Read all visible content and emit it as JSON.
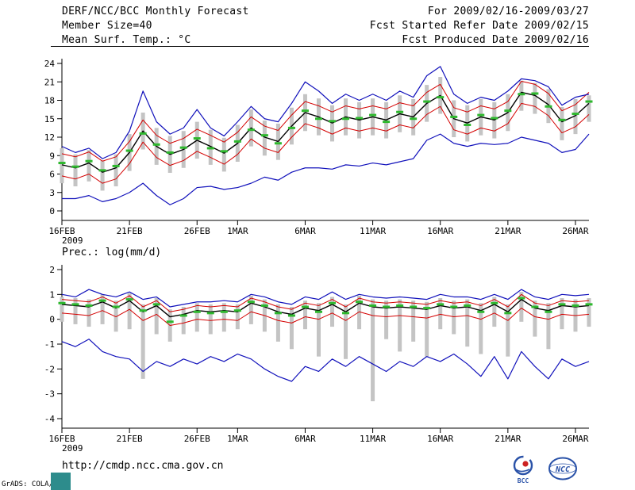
{
  "header": {
    "title": "DERF/NCC/BCC Monthly Forecast",
    "member_size": "Member Size=40",
    "var_label": "Mean Surf. Temp.: °C",
    "for_range": "For 2009/02/16-2009/03/27",
    "refer_date": "Fcst Started Refer Date 2009/02/15",
    "produced_date": "Fcst Produced Date 2009/02/16"
  },
  "footer": {
    "url": "http://cmdp.ncc.cma.gov.cn",
    "credit": "GrADS: COLA/IGES",
    "logos": [
      {
        "name": "BCC"
      },
      {
        "name": "NCC"
      }
    ]
  },
  "colors": {
    "background": "#ffffff",
    "text": "#000000",
    "ensemble_bar": "#c4c4c4",
    "median_green": "#2eb82e",
    "mean_black": "#000000",
    "bound_red": "#d40000",
    "extreme_blue": "#1111bb",
    "teal_box": "#2d8c8c",
    "logo_blue": "#2a52a8",
    "logo_red": "#cc2222"
  },
  "chart_data": [
    {
      "type": "line",
      "title": "Mean Surf. Temp.: °C",
      "xlabel": "",
      "ylabel": "",
      "grid": false,
      "legend": "none",
      "ylim": [
        0,
        24
      ],
      "yticks": [
        0,
        3,
        6,
        9,
        12,
        15,
        18,
        21,
        24
      ],
      "n_points": 40,
      "x_start_date": "2009/02/16",
      "x_end_date": "2009/03/27",
      "x_tick_labels": [
        "16FEB",
        "21FEB",
        "26FEB",
        "1MAR",
        "6MAR",
        "11MAR",
        "16MAR",
        "21MAR",
        "26MAR"
      ],
      "x_tick_positions": [
        0,
        5,
        10,
        13,
        18,
        23,
        28,
        33,
        38
      ],
      "x_year_label": "2009",
      "series": [
        {
          "name": "ensemble-spread",
          "type": "bar-range",
          "color": "#c4c4c4",
          "low": [
            4.5,
            4.0,
            4.8,
            3.3,
            4.0,
            6.5,
            10.0,
            7.5,
            6.2,
            7.0,
            8.5,
            7.5,
            6.4,
            8.0,
            10.5,
            9.0,
            8.3,
            10.8,
            13.0,
            12.3,
            11.3,
            12.3,
            11.8,
            12.3,
            11.8,
            12.8,
            12.3,
            14.5,
            15.8,
            12.0,
            11.3,
            12.3,
            11.8,
            13.0,
            16.3,
            15.8,
            14.3,
            11.5,
            12.5,
            14.5
          ],
          "high": [
            10.2,
            9.2,
            9.9,
            8.2,
            9.2,
            12.5,
            16.0,
            13.5,
            12.2,
            13.0,
            14.5,
            13.2,
            11.9,
            14.0,
            16.5,
            14.7,
            14.2,
            16.8,
            19.0,
            18.3,
            17.2,
            18.3,
            17.7,
            18.3,
            17.7,
            18.8,
            18.2,
            20.5,
            21.8,
            18.0,
            17.2,
            18.2,
            17.7,
            19.0,
            21.2,
            20.8,
            19.8,
            16.9,
            18.2,
            18.8
          ]
        },
        {
          "name": "upper-bound",
          "type": "line",
          "color": "#d40000",
          "width": 1,
          "values": [
            9.3,
            8.8,
            9.6,
            8.1,
            8.8,
            11.3,
            14.8,
            12.3,
            11.0,
            11.8,
            13.3,
            12.3,
            11.2,
            12.8,
            15.3,
            13.8,
            13.1,
            15.6,
            17.8,
            17.1,
            16.1,
            17.1,
            16.6,
            17.1,
            16.6,
            17.6,
            17.1,
            19.3,
            20.6,
            16.8,
            16.1,
            17.1,
            16.6,
            17.8,
            21.1,
            20.6,
            19.1,
            16.3,
            17.3,
            19.3
          ]
        },
        {
          "name": "lower-bound",
          "type": "line",
          "color": "#d40000",
          "width": 1,
          "values": [
            5.7,
            5.2,
            6.0,
            4.5,
            5.2,
            7.7,
            11.2,
            8.7,
            7.4,
            8.2,
            9.7,
            8.7,
            7.6,
            9.2,
            11.7,
            10.2,
            9.5,
            12.0,
            14.2,
            13.5,
            12.5,
            13.5,
            13.0,
            13.5,
            13.0,
            14.0,
            13.5,
            15.7,
            17.0,
            13.2,
            12.5,
            13.5,
            13.0,
            14.2,
            17.5,
            17.0,
            15.5,
            12.7,
            13.7,
            15.7
          ]
        },
        {
          "name": "ensemble-mean",
          "type": "line",
          "color": "#000000",
          "width": 1.4,
          "values": [
            7.5,
            7.0,
            7.8,
            6.3,
            7.0,
            9.5,
            13.0,
            10.5,
            9.2,
            10.0,
            11.5,
            10.5,
            9.4,
            11.0,
            13.5,
            12.0,
            11.3,
            13.8,
            16.0,
            15.3,
            14.3,
            15.3,
            14.8,
            15.3,
            14.8,
            15.8,
            15.3,
            17.5,
            18.8,
            15.0,
            14.3,
            15.3,
            14.8,
            16.0,
            19.3,
            18.8,
            17.3,
            14.5,
            15.5,
            17.5
          ]
        },
        {
          "name": "ensemble-max",
          "type": "line",
          "color": "#1111bb",
          "width": 1.2,
          "values": [
            10.5,
            9.5,
            10.2,
            8.5,
            9.5,
            13.0,
            19.5,
            14.5,
            12.5,
            13.5,
            16.5,
            13.5,
            12.2,
            14.5,
            17.0,
            15.0,
            14.5,
            17.5,
            21.0,
            19.5,
            17.5,
            19.0,
            18.0,
            19.0,
            18.0,
            19.5,
            18.5,
            22.0,
            23.5,
            19.0,
            17.5,
            18.5,
            18.0,
            19.5,
            21.5,
            21.2,
            20.2,
            17.2,
            18.5,
            19.0
          ]
        },
        {
          "name": "ensemble-min",
          "type": "line",
          "color": "#1111bb",
          "width": 1.2,
          "values": [
            2.0,
            2.0,
            2.5,
            1.5,
            2.0,
            3.0,
            4.5,
            2.5,
            1.0,
            2.0,
            3.8,
            4.0,
            3.5,
            3.8,
            4.5,
            5.5,
            5.0,
            6.3,
            7.0,
            7.0,
            6.8,
            7.5,
            7.3,
            7.8,
            7.5,
            8.0,
            8.5,
            11.5,
            12.5,
            11.0,
            10.5,
            11.0,
            10.8,
            11.0,
            12.0,
            11.5,
            11.0,
            9.5,
            10.0,
            12.5
          ]
        },
        {
          "name": "ensemble-median",
          "type": "dash-markers",
          "color": "#2eb82e",
          "width": 3,
          "values": [
            7.8,
            7.2,
            8.1,
            6.6,
            7.3,
            9.8,
            12.6,
            10.8,
            9.5,
            10.3,
            11.8,
            10.2,
            9.7,
            11.3,
            13.2,
            12.3,
            11.0,
            13.5,
            16.3,
            15.0,
            14.6,
            15.0,
            15.1,
            15.6,
            14.5,
            16.1,
            15.0,
            17.8,
            18.5,
            15.3,
            14.0,
            15.6,
            15.1,
            16.3,
            19.0,
            19.1,
            17.0,
            14.8,
            15.8,
            17.8
          ]
        }
      ]
    },
    {
      "type": "line",
      "title": "Prec.: log(mm/d)",
      "xlabel": "",
      "ylabel": "",
      "grid": false,
      "legend": "none",
      "ylim": [
        -4,
        2
      ],
      "yticks": [
        -4,
        -3,
        -2,
        -1,
        0,
        1,
        2
      ],
      "n_points": 40,
      "x_start_date": "2009/02/16",
      "x_end_date": "2009/03/27",
      "x_tick_labels": [
        "16FEB",
        "21FEB",
        "26FEB",
        "1MAR",
        "6MAR",
        "11MAR",
        "16MAR",
        "21MAR",
        "26MAR"
      ],
      "x_tick_positions": [
        0,
        5,
        10,
        13,
        18,
        23,
        28,
        33,
        38
      ],
      "x_year_label": "2009",
      "series": [
        {
          "name": "ensemble-spread",
          "type": "bar-range",
          "color": "#c4c4c4",
          "low": [
            -0.1,
            -0.2,
            -0.3,
            -0.2,
            -0.5,
            -0.4,
            -2.4,
            -0.6,
            -0.9,
            -0.6,
            -0.5,
            -0.6,
            -0.5,
            -0.4,
            -0.2,
            -0.5,
            -0.9,
            -1.2,
            -0.4,
            -1.5,
            -0.3,
            -1.6,
            -0.4,
            -3.3,
            -0.8,
            -1.3,
            -0.9,
            -1.5,
            -0.4,
            -0.6,
            -1.1,
            -1.4,
            -0.3,
            -1.5,
            -0.1,
            -0.7,
            -1.2,
            -0.4,
            -0.5,
            -0.3
          ],
          "high": [
            0.9,
            0.85,
            0.8,
            1.0,
            0.75,
            1.05,
            0.6,
            0.85,
            0.4,
            0.5,
            0.65,
            0.6,
            0.65,
            0.6,
            0.95,
            0.8,
            0.6,
            0.5,
            0.75,
            0.65,
            0.9,
            0.6,
            0.95,
            0.8,
            0.75,
            0.8,
            0.75,
            0.7,
            0.85,
            0.75,
            0.8,
            0.65,
            0.9,
            0.6,
            1.1,
            0.75,
            0.65,
            0.85,
            0.8,
            0.85
          ]
        },
        {
          "name": "upper-bound",
          "type": "line",
          "color": "#d40000",
          "width": 1,
          "values": [
            0.8,
            0.75,
            0.7,
            0.9,
            0.65,
            0.95,
            0.5,
            0.75,
            0.3,
            0.4,
            0.55,
            0.5,
            0.55,
            0.5,
            0.85,
            0.7,
            0.5,
            0.4,
            0.65,
            0.55,
            0.8,
            0.5,
            0.85,
            0.7,
            0.65,
            0.7,
            0.65,
            0.6,
            0.75,
            0.65,
            0.7,
            0.55,
            0.8,
            0.5,
            1.0,
            0.65,
            0.55,
            0.75,
            0.7,
            0.75
          ]
        },
        {
          "name": "lower-bound",
          "type": "line",
          "color": "#d40000",
          "width": 1,
          "values": [
            0.25,
            0.2,
            0.15,
            0.35,
            0.1,
            0.4,
            -0.05,
            0.2,
            -0.25,
            -0.15,
            0.0,
            -0.05,
            0.0,
            -0.05,
            0.3,
            0.15,
            -0.05,
            -0.15,
            0.1,
            0.0,
            0.25,
            -0.05,
            0.3,
            0.15,
            0.1,
            0.15,
            0.1,
            0.05,
            0.2,
            0.1,
            0.15,
            0.0,
            0.25,
            -0.05,
            0.45,
            0.1,
            0.0,
            0.2,
            0.15,
            0.2
          ]
        },
        {
          "name": "ensemble-mean",
          "type": "line",
          "color": "#000000",
          "width": 1.4,
          "values": [
            0.6,
            0.55,
            0.5,
            0.7,
            0.45,
            0.75,
            0.3,
            0.55,
            0.1,
            0.2,
            0.35,
            0.3,
            0.35,
            0.3,
            0.65,
            0.5,
            0.3,
            0.2,
            0.45,
            0.35,
            0.6,
            0.3,
            0.65,
            0.5,
            0.45,
            0.5,
            0.45,
            0.4,
            0.55,
            0.45,
            0.5,
            0.35,
            0.6,
            0.3,
            0.8,
            0.45,
            0.35,
            0.55,
            0.5,
            0.55
          ]
        },
        {
          "name": "ensemble-max",
          "type": "line",
          "color": "#1111bb",
          "width": 1.2,
          "values": [
            1.0,
            0.9,
            1.2,
            1.0,
            0.9,
            1.1,
            0.8,
            0.9,
            0.5,
            0.6,
            0.7,
            0.7,
            0.75,
            0.7,
            1.0,
            0.9,
            0.7,
            0.6,
            0.9,
            0.8,
            1.1,
            0.8,
            1.0,
            0.9,
            0.85,
            0.9,
            0.85,
            0.8,
            1.0,
            0.9,
            0.9,
            0.8,
            1.0,
            0.8,
            1.2,
            0.9,
            0.8,
            1.0,
            0.95,
            1.0
          ]
        },
        {
          "name": "ensemble-min",
          "type": "line",
          "color": "#1111bb",
          "width": 1.2,
          "values": [
            -0.9,
            -1.1,
            -0.8,
            -1.3,
            -1.5,
            -1.6,
            -2.1,
            -1.7,
            -1.9,
            -1.6,
            -1.8,
            -1.5,
            -1.7,
            -1.4,
            -1.6,
            -2.0,
            -2.3,
            -2.5,
            -1.9,
            -2.1,
            -1.6,
            -1.9,
            -1.5,
            -1.8,
            -2.1,
            -1.7,
            -1.9,
            -1.5,
            -1.7,
            -1.4,
            -1.8,
            -2.3,
            -1.5,
            -2.4,
            -1.3,
            -1.9,
            -2.4,
            -1.6,
            -1.9,
            -1.7
          ]
        },
        {
          "name": "ensemble-median",
          "type": "dash-markers",
          "color": "#2eb82e",
          "width": 3,
          "values": [
            0.65,
            0.6,
            0.55,
            0.75,
            0.5,
            0.8,
            0.35,
            0.6,
            -0.1,
            0.15,
            0.3,
            0.25,
            0.3,
            0.35,
            0.7,
            0.55,
            0.25,
            0.15,
            0.5,
            0.3,
            0.65,
            0.25,
            0.7,
            0.55,
            0.5,
            0.55,
            0.5,
            0.45,
            0.6,
            0.5,
            0.55,
            0.3,
            0.65,
            0.25,
            0.85,
            0.5,
            0.3,
            0.6,
            0.55,
            0.6
          ]
        }
      ]
    }
  ]
}
